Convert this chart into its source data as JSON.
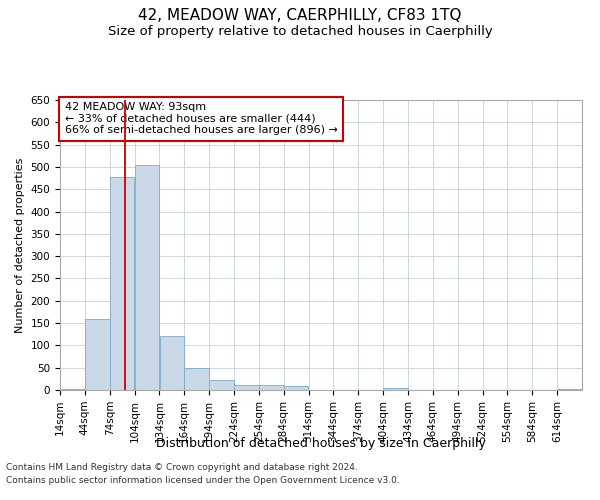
{
  "title1": "42, MEADOW WAY, CAERPHILLY, CF83 1TQ",
  "title2": "Size of property relative to detached houses in Caerphilly",
  "xlabel": "Distribution of detached houses by size in Caerphilly",
  "ylabel": "Number of detached properties",
  "bin_edges": [
    14,
    44,
    74,
    104,
    134,
    164,
    194,
    224,
    254,
    284,
    314,
    344,
    374,
    404,
    434,
    464,
    494,
    524,
    554,
    584,
    614
  ],
  "bar_heights": [
    2,
    160,
    478,
    505,
    120,
    50,
    22,
    12,
    12,
    8,
    0,
    0,
    0,
    5,
    0,
    0,
    0,
    0,
    0,
    0,
    3
  ],
  "bar_color": "#c9d9e8",
  "bar_edgecolor": "#7aaac8",
  "property_line_x": 93,
  "property_line_color": "#cc0000",
  "annotation_text": "42 MEADOW WAY: 93sqm\n← 33% of detached houses are smaller (444)\n66% of semi-detached houses are larger (896) →",
  "annotation_box_color": "#ffffff",
  "annotation_box_edgecolor": "#cc0000",
  "ylim": [
    0,
    650
  ],
  "yticks": [
    0,
    50,
    100,
    150,
    200,
    250,
    300,
    350,
    400,
    450,
    500,
    550,
    600,
    650
  ],
  "xlim_left": 14,
  "xlim_right": 644,
  "grid_color": "#c8d0dc",
  "background_color": "#ffffff",
  "footnote1": "Contains HM Land Registry data © Crown copyright and database right 2024.",
  "footnote2": "Contains public sector information licensed under the Open Government Licence v3.0.",
  "title1_fontsize": 11,
  "title2_fontsize": 9.5,
  "xlabel_fontsize": 9,
  "ylabel_fontsize": 8,
  "tick_fontsize": 7.5,
  "annotation_fontsize": 8,
  "footnote_fontsize": 6.5
}
